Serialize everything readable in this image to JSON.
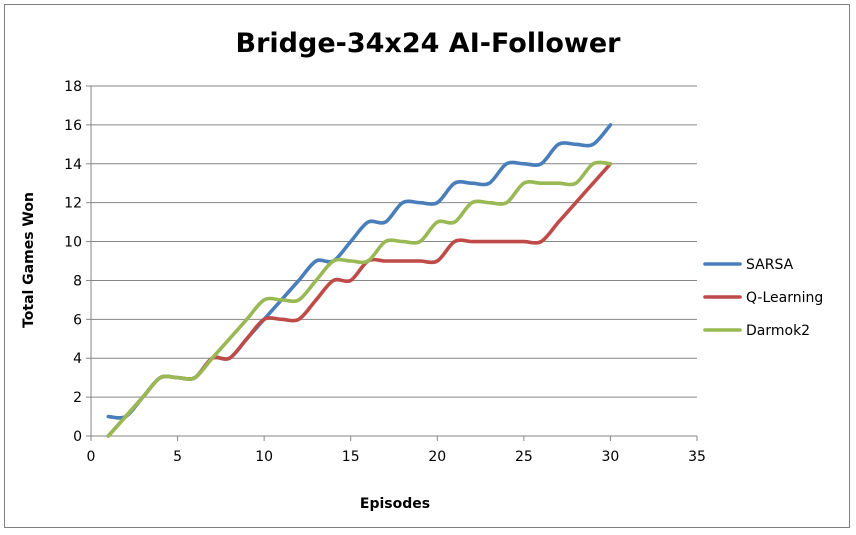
{
  "chart_data": {
    "type": "line",
    "title": "Bridge-34x24 AI-Follower",
    "xlabel": "Episodes",
    "ylabel": "Total Games Won",
    "xlim": [
      0,
      35
    ],
    "ylim": [
      0,
      18
    ],
    "xticks": [
      0,
      5,
      10,
      15,
      20,
      25,
      30,
      35
    ],
    "yticks": [
      0,
      2,
      4,
      6,
      8,
      10,
      12,
      14,
      16,
      18
    ],
    "grid": "horizontal",
    "legend_position": "right",
    "x": [
      1,
      2,
      3,
      4,
      5,
      6,
      7,
      8,
      9,
      10,
      11,
      12,
      13,
      14,
      15,
      16,
      17,
      18,
      19,
      20,
      21,
      22,
      23,
      24,
      25,
      26,
      27,
      28,
      29,
      30
    ],
    "series": [
      {
        "name": "SARSA",
        "color": "#4a7ebb",
        "values": [
          1,
          1,
          2,
          3,
          3,
          3,
          4,
          4,
          5,
          6,
          7,
          8,
          9,
          9,
          10,
          11,
          11,
          12,
          12,
          12,
          13,
          13,
          13,
          14,
          14,
          14,
          15,
          15,
          15,
          16
        ]
      },
      {
        "name": "Q-Learning",
        "color": "#be4b48",
        "values": [
          0,
          1,
          2,
          3,
          3,
          3,
          4,
          4,
          5,
          6,
          6,
          6,
          7,
          8,
          8,
          9,
          9,
          9,
          9,
          9,
          10,
          10,
          10,
          10,
          10,
          10,
          11,
          12,
          13,
          14
        ]
      },
      {
        "name": "Darmok2",
        "color": "#98b954",
        "values": [
          0,
          1,
          2,
          3,
          3,
          3,
          4,
          5,
          6,
          7,
          7,
          7,
          8,
          9,
          9,
          9,
          10,
          10,
          10,
          11,
          11,
          12,
          12,
          12,
          13,
          13,
          13,
          13,
          14,
          14
        ]
      }
    ]
  }
}
